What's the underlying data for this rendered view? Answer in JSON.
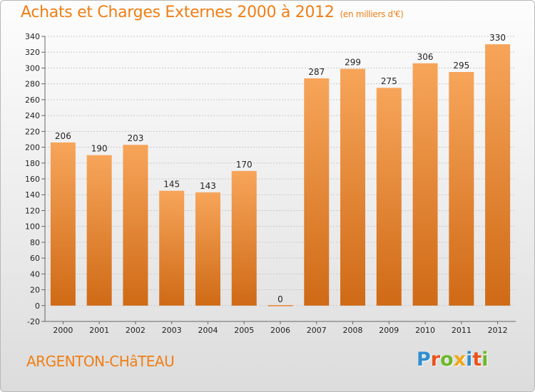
{
  "title": "Achats et Charges Externes 2000 à 2012",
  "unit_label": "(en milliers d'€)",
  "town": "ARGENTON-CHâTEAU",
  "logo": {
    "text": "Proxiti",
    "colors": [
      "#2e8fd0",
      "#e8541d",
      "#6cb82a",
      "#f2a51a",
      "#2e8fd0",
      "#e8541d",
      "#6cb82a"
    ]
  },
  "colors": {
    "bar_top": "#f7a55a",
    "bar_bottom": "#cf6a16",
    "accent": "#f07e14"
  },
  "chart_data": {
    "type": "bar",
    "title": "Achats et Charges Externes 2000 à 2012",
    "categories": [
      "2000",
      "2001",
      "2002",
      "2003",
      "2004",
      "2005",
      "2006",
      "2007",
      "2008",
      "2009",
      "2010",
      "2011",
      "2012"
    ],
    "values": [
      206,
      190,
      203,
      145,
      143,
      170,
      0,
      287,
      299,
      275,
      306,
      295,
      330
    ],
    "ylim": [
      -20,
      340
    ],
    "yticks": [
      -20,
      0,
      20,
      40,
      60,
      80,
      100,
      120,
      140,
      160,
      180,
      200,
      220,
      240,
      260,
      280,
      300,
      320,
      340
    ],
    "grid": true,
    "xlabel": "",
    "ylabel": ""
  }
}
